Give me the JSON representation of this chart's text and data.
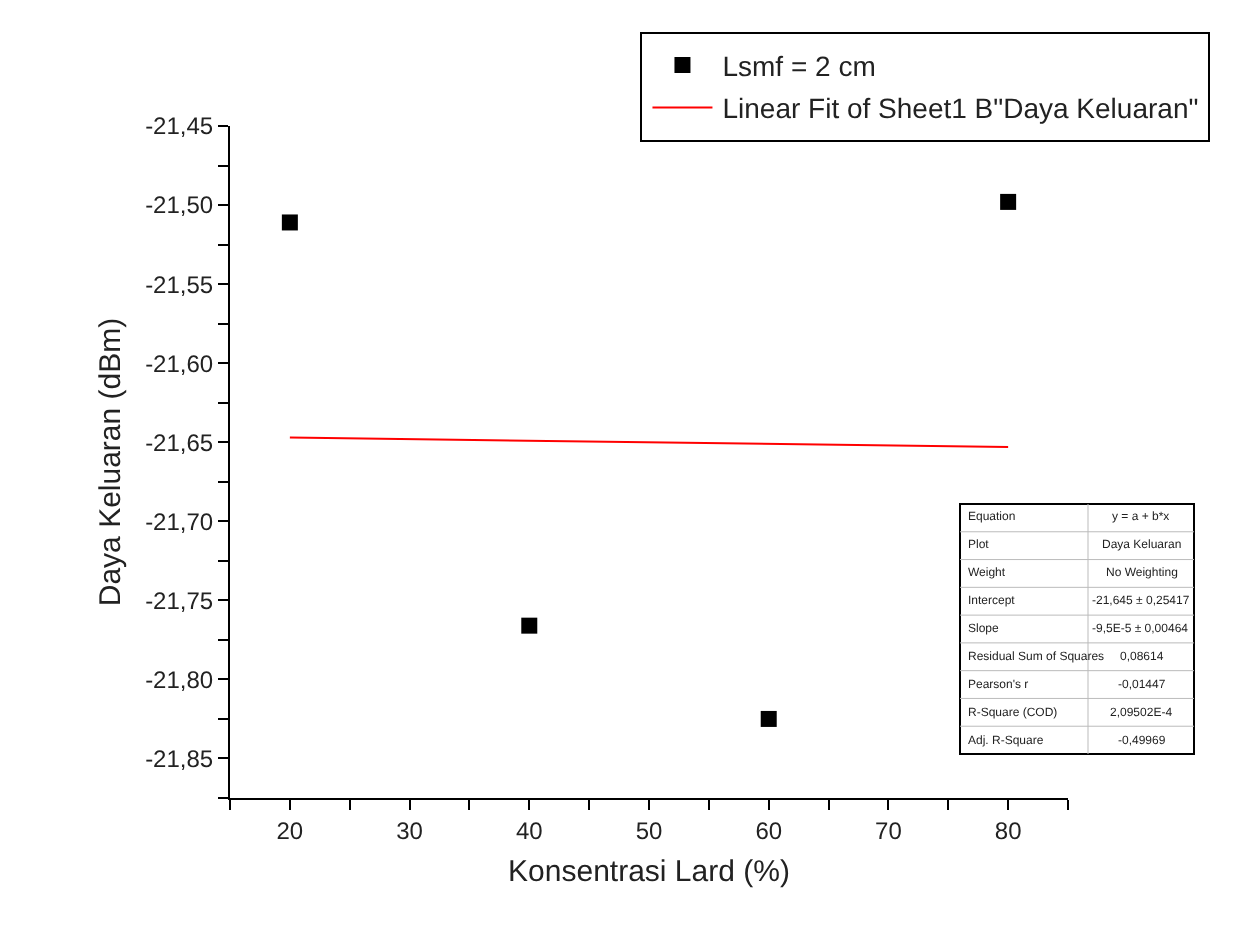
{
  "chart_data": {
    "type": "scatter",
    "xlabel": "Konsentrasi Lard (%)",
    "ylabel": "Daya Keluaran (dBm)",
    "xlim": [
      15,
      85
    ],
    "xticks": [
      {
        "value": 15,
        "label": null
      },
      20,
      {
        "value": 25,
        "label": null
      },
      30,
      {
        "value": 35,
        "label": null
      },
      40,
      {
        "value": 45,
        "label": null
      },
      50,
      {
        "value": 55,
        "label": null
      },
      60,
      {
        "value": 65,
        "label": null
      },
      70,
      {
        "value": 75,
        "label": null
      },
      80,
      {
        "value": 85,
        "label": null
      }
    ],
    "ylim": [
      -21.875,
      -21.45
    ],
    "yticks": [
      {
        "value": -21.875,
        "label": null
      },
      {
        "value": -21.85,
        "label": "-21,85"
      },
      {
        "value": -21.825,
        "label": null
      },
      {
        "value": -21.8,
        "label": "-21,80"
      },
      {
        "value": -21.775,
        "label": null
      },
      {
        "value": -21.75,
        "label": "-21,75"
      },
      {
        "value": -21.725,
        "label": null
      },
      {
        "value": -21.7,
        "label": "-21,70"
      },
      {
        "value": -21.675,
        "label": null
      },
      {
        "value": -21.65,
        "label": "-21,65"
      },
      {
        "value": -21.625,
        "label": null
      },
      {
        "value": -21.6,
        "label": "-21,60"
      },
      {
        "value": -21.575,
        "label": null
      },
      {
        "value": -21.55,
        "label": "-21,55"
      },
      {
        "value": -21.525,
        "label": null
      },
      {
        "value": -21.5,
        "label": "-21,50"
      },
      {
        "value": -21.475,
        "label": null
      },
      {
        "value": -21.45,
        "label": "-21,45"
      }
    ],
    "legend": "top right",
    "series": [
      {
        "name": "Lsmf = 2 cm",
        "marker": "square",
        "color": "#000000",
        "x": [
          20,
          40,
          60,
          80
        ],
        "values": [
          -21.511,
          -21.766,
          -21.825,
          -21.498
        ]
      },
      {
        "name": "Linear Fit of Sheet1 B\"Daya Keluaran\"",
        "type": "line",
        "marker": "none",
        "color": "#ff0000",
        "x": [
          20,
          80
        ],
        "values": [
          -21.647,
          -21.653
        ]
      }
    ],
    "annotations": [
      "Equation",
      "y = a + b*x",
      "Plot",
      "Daya Keluaran",
      "Weight",
      "No Weighting",
      "Intercept",
      "-21,645 ± 0,25417",
      "Slope",
      "-9,5E-5 ± 0,00464",
      "Residual Sum of Squares",
      "0,08614",
      "Pearson's r",
      "-0,01447",
      "R-Square (COD)",
      "2,09502E-4",
      "Adj. R-Square",
      "-0,49969"
    ]
  }
}
